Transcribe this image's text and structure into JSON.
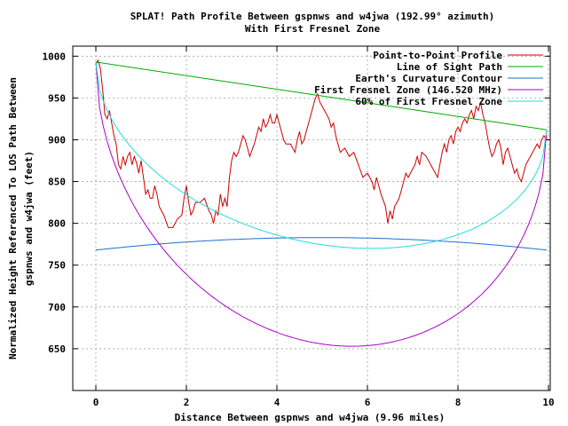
{
  "chart_data": {
    "type": "line",
    "title": "SPLAT! Path Profile Between gspnws and w4jwa (192.99° azimuth)",
    "subtitle": "With First Fresnel Zone",
    "xlabel": "Distance Between gspnws and w4jwa (9.96 miles)",
    "ylabel_line1": "Normalized Height Referenced To LOS Path Between",
    "ylabel_line2": "gspnws and w4jwa (feet)",
    "xlim": [
      -0.5,
      10
    ],
    "ylim": [
      600,
      1012
    ],
    "grid": true,
    "legend_position": "top-right",
    "x_ticks": [
      {
        "value": 0,
        "label": "0"
      },
      {
        "value": 2,
        "label": "2"
      },
      {
        "value": 4,
        "label": "4"
      },
      {
        "value": 6,
        "label": "6"
      },
      {
        "value": 8,
        "label": "8"
      },
      {
        "value": 10,
        "label": "10"
      }
    ],
    "y_ticks": [
      {
        "value": 650,
        "label": "650"
      },
      {
        "value": 700,
        "label": "700"
      },
      {
        "value": 750,
        "label": "750"
      },
      {
        "value": 800,
        "label": "800"
      },
      {
        "value": 850,
        "label": "850"
      },
      {
        "value": 900,
        "label": "900"
      },
      {
        "value": 950,
        "label": "950"
      },
      {
        "value": 1000,
        "label": "1000"
      }
    ],
    "series": [
      {
        "name": "Point-to-Point Profile",
        "color": "#cc0000",
        "x": [
          0,
          0.05,
          0.1,
          0.15,
          0.2,
          0.25,
          0.3,
          0.35,
          0.4,
          0.45,
          0.5,
          0.55,
          0.6,
          0.65,
          0.7,
          0.75,
          0.8,
          0.85,
          0.9,
          0.95,
          1.0,
          1.05,
          1.1,
          1.15,
          1.2,
          1.25,
          1.3,
          1.35,
          1.4,
          1.5,
          1.6,
          1.7,
          1.8,
          1.9,
          1.95,
          2.0,
          2.05,
          2.1,
          2.15,
          2.2,
          2.3,
          2.4,
          2.5,
          2.55,
          2.6,
          2.65,
          2.7,
          2.75,
          2.8,
          2.85,
          2.9,
          2.95,
          3.0,
          3.05,
          3.1,
          3.15,
          3.2,
          3.25,
          3.3,
          3.35,
          3.4,
          3.5,
          3.6,
          3.65,
          3.7,
          3.75,
          3.8,
          3.85,
          3.9,
          3.95,
          4.0,
          4.05,
          4.1,
          4.15,
          4.2,
          4.3,
          4.4,
          4.45,
          4.5,
          4.55,
          4.6,
          4.65,
          4.7,
          4.75,
          4.8,
          4.85,
          4.9,
          4.95,
          5.0,
          5.05,
          5.1,
          5.15,
          5.2,
          5.25,
          5.3,
          5.35,
          5.4,
          5.5,
          5.6,
          5.7,
          5.8,
          5.9,
          6.0,
          6.05,
          6.1,
          6.15,
          6.2,
          6.3,
          6.4,
          6.45,
          6.5,
          6.55,
          6.6,
          6.65,
          6.7,
          6.75,
          6.8,
          6.85,
          6.9,
          7.0,
          7.05,
          7.1,
          7.15,
          7.2,
          7.3,
          7.4,
          7.5,
          7.55,
          7.6,
          7.65,
          7.7,
          7.75,
          7.8,
          7.85,
          7.9,
          7.95,
          8.0,
          8.05,
          8.1,
          8.15,
          8.2,
          8.25,
          8.3,
          8.35,
          8.4,
          8.45,
          8.5,
          8.55,
          8.6,
          8.65,
          8.7,
          8.75,
          8.8,
          8.85,
          8.9,
          8.95,
          9.0,
          9.05,
          9.1,
          9.15,
          9.2,
          9.25,
          9.3,
          9.35,
          9.4,
          9.45,
          9.5,
          9.55,
          9.6,
          9.65,
          9.7,
          9.75,
          9.8,
          9.85,
          9.9,
          9.95,
          9.96
        ],
        "y": [
          990,
          995,
          985,
          960,
          930,
          925,
          935,
          920,
          905,
          895,
          870,
          865,
          880,
          870,
          880,
          885,
          870,
          880,
          872,
          860,
          875,
          855,
          835,
          840,
          830,
          830,
          845,
          835,
          820,
          810,
          795,
          795,
          805,
          810,
          830,
          845,
          825,
          810,
          815,
          825,
          825,
          830,
          815,
          810,
          800,
          815,
          810,
          835,
          820,
          830,
          820,
          855,
          875,
          885,
          880,
          885,
          895,
          905,
          900,
          890,
          880,
          895,
          915,
          910,
          925,
          915,
          920,
          930,
          920,
          920,
          930,
          920,
          910,
          900,
          895,
          895,
          885,
          900,
          910,
          895,
          900,
          910,
          920,
          930,
          940,
          950,
          955,
          945,
          940,
          935,
          930,
          925,
          915,
          920,
          905,
          895,
          885,
          890,
          880,
          885,
          870,
          855,
          860,
          855,
          850,
          840,
          855,
          835,
          820,
          800,
          815,
          805,
          820,
          825,
          830,
          840,
          850,
          860,
          855,
          865,
          870,
          880,
          870,
          885,
          880,
          870,
          860,
          855,
          870,
          885,
          895,
          885,
          900,
          905,
          895,
          910,
          915,
          910,
          920,
          925,
          920,
          930,
          935,
          925,
          940,
          935,
          945,
          930,
          920,
          905,
          890,
          880,
          885,
          895,
          900,
          890,
          870,
          885,
          890,
          880,
          870,
          860,
          865,
          855,
          850,
          860,
          870,
          875,
          880,
          885,
          890,
          895,
          890,
          900,
          905,
          900,
          905
        ]
      },
      {
        "name": "Line of Sight Path",
        "color": "#00aa00",
        "x": [
          0,
          9.96
        ],
        "y": [
          993,
          912
        ]
      },
      {
        "name": "Earth's Curvature Contour",
        "color": "#1a6fd4",
        "curve": "parabola",
        "x_range": [
          0,
          9.96
        ],
        "y_ends": [
          768,
          768
        ],
        "y_mid": 783
      },
      {
        "name": "First Fresnel Zone (146.520 MHz)",
        "color": "#aa00cc",
        "curve": "fresnel",
        "x_range": [
          0,
          9.96
        ],
        "y_ends": [
          993,
          912
        ],
        "y_min": 653,
        "x_at_min": 5.6
      },
      {
        "name": "60% of First Fresnel Zone",
        "color": "#22dddd",
        "curve": "fresnel",
        "x_range": [
          0,
          9.96
        ],
        "y_ends": [
          993,
          912
        ],
        "y_min": 770,
        "x_at_min": 6.0
      }
    ]
  }
}
